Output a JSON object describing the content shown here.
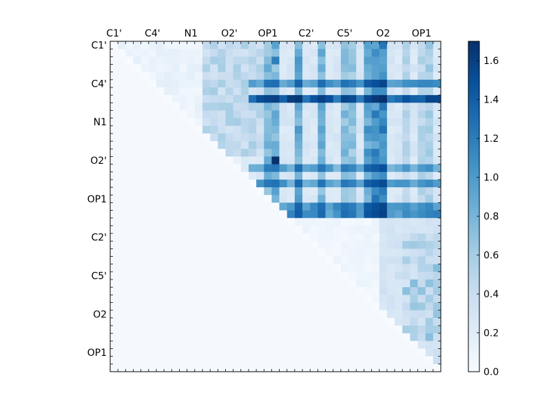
{
  "chart_data": {
    "type": "heatmap",
    "title": "",
    "xlabel": "",
    "ylabel": "",
    "tick_labels": [
      "C1'",
      "C4'",
      "N1",
      "O2'",
      "OP1",
      "C2'",
      "C5'",
      "O2",
      "OP1"
    ],
    "x_tick_labels": [
      "C1'",
      "C4'",
      "N1",
      "O2'",
      "OP1",
      "C2'",
      "C5'",
      "O2",
      "OP1"
    ],
    "y_tick_labels": [
      "C1'",
      "C4'",
      "N1",
      "O2'",
      "OP1",
      "C2'",
      "C5'",
      "O2",
      "OP1"
    ],
    "grid_size": 43,
    "colormap": "Blues",
    "cmap_colors": [
      "#f7fbff",
      "#deebf7",
      "#c6dbef",
      "#9ecae1",
      "#6baed6",
      "#4292c6",
      "#2171b5",
      "#08519c",
      "#08306b"
    ],
    "colorbar": {
      "range": [
        0,
        1.7
      ],
      "ticks": [
        0.0,
        0.2,
        0.4,
        0.6,
        0.8,
        1.0,
        1.2,
        1.4,
        1.6
      ],
      "tick_labels": [
        "0.0",
        "0.2",
        "0.4",
        "0.6",
        "0.8",
        "1.0",
        "1.2",
        "1.4",
        "1.6"
      ]
    },
    "strong_rows": [
      {
        "row": 5,
        "level": 1.1
      },
      {
        "row": 7,
        "level": 1.55
      },
      {
        "row": 16,
        "level": 1.0
      },
      {
        "row": 18,
        "level": 1.05
      },
      {
        "row": 21,
        "level": 1.1
      },
      {
        "row": 22,
        "level": 1.15
      }
    ],
    "strong_cols": [
      {
        "col": 20,
        "level": 0.85
      },
      {
        "col": 21,
        "level": 0.9
      },
      {
        "col": 24,
        "level": 1.0
      },
      {
        "col": 27,
        "level": 0.9
      },
      {
        "col": 30,
        "level": 0.85
      },
      {
        "col": 31,
        "level": 0.75
      },
      {
        "col": 33,
        "level": 1.1
      },
      {
        "col": 34,
        "level": 1.2
      },
      {
        "col": 35,
        "level": 1.3
      },
      {
        "col": 38,
        "level": 0.55
      },
      {
        "col": 40,
        "level": 0.55
      },
      {
        "col": 41,
        "level": 0.65
      }
    ],
    "peak_cells": [
      {
        "row": 7,
        "col": 34,
        "value": 1.65
      },
      {
        "row": 7,
        "col": 33,
        "value": 1.55
      },
      {
        "row": 15,
        "col": 21,
        "value": 1.7
      },
      {
        "row": 2,
        "col": 21,
        "value": 1.2
      },
      {
        "row": 19,
        "col": 21,
        "value": 0.95
      }
    ]
  }
}
